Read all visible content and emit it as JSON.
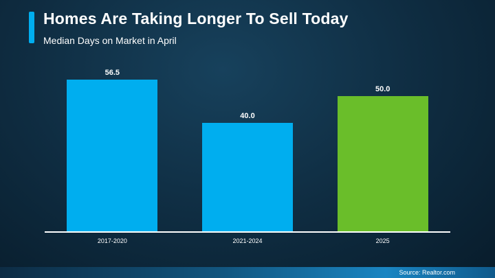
{
  "header": {
    "title": "Homes Are Taking Longer To Sell Today",
    "subtitle": "Median Days on Market in April"
  },
  "footer": {
    "source": "Source: Realtor.com"
  },
  "colors": {
    "accent": "#00AEEF",
    "bar_default": "#00AEEF",
    "bar_highlight": "#6ABE2A",
    "background_dark": "#0f2d42",
    "footer_blue": "#1A85C2"
  },
  "chart_data": {
    "type": "bar",
    "title": "Homes Are Taking Longer To Sell Today",
    "subtitle": "Median Days on Market in April",
    "categories": [
      "2017-2020",
      "2021-2024",
      "2025"
    ],
    "values": [
      56.5,
      40.0,
      50.0
    ],
    "value_labels": [
      "56.5",
      "40.0",
      "50.0"
    ],
    "bar_colors": [
      "#00AEEF",
      "#00AEEF",
      "#6ABE2A"
    ],
    "xlabel": "",
    "ylabel": "Median Days on Market",
    "ylim": [
      0,
      60
    ],
    "grid": false,
    "legend": false,
    "source": "Source: Realtor.com"
  }
}
